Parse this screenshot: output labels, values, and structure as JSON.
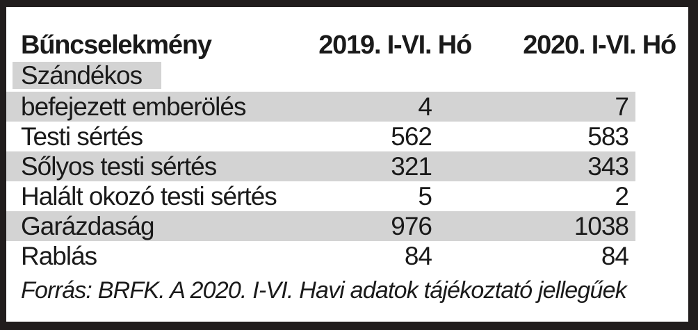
{
  "colors": {
    "frame": "#211d1d",
    "panel_background": "#ffffff",
    "highlight_band": "#d3d3d3",
    "text": "#1a1a1a"
  },
  "chart_data": {
    "type": "table",
    "columns": [
      "Bűncselekmény",
      "2019. I-VI. Hó",
      "2020. I-VI. Hó"
    ],
    "section_label": "Szándékos",
    "rows": [
      {
        "label": "befejezett emberölés",
        "v2019": "4",
        "v2020": "7",
        "highlight": true
      },
      {
        "label": "Testi sértés",
        "v2019": "562",
        "v2020": "583",
        "highlight": false
      },
      {
        "label": "Sőlyos testi sértés",
        "v2019": "321",
        "v2020": "343",
        "highlight": true
      },
      {
        "label": "Halált okozó testi sértés",
        "v2019": "5",
        "v2020": "2",
        "highlight": false
      },
      {
        "label": "Garázdaság",
        "v2019": "976",
        "v2020": "1038",
        "highlight": true
      },
      {
        "label": "Rablás",
        "v2019": "84",
        "v2020": "84",
        "highlight": false
      }
    ],
    "source_note": "Forrás: BRFK. A 2020. I-VI. Havi adatok tájékoztató jellegűek"
  }
}
